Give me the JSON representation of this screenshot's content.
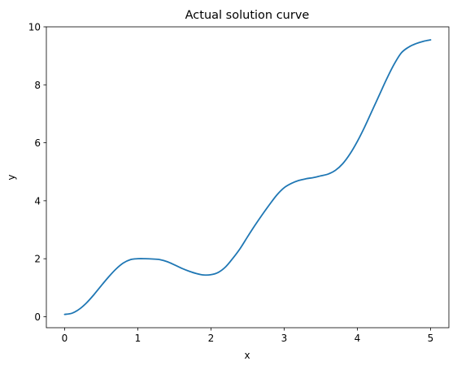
{
  "chart_data": {
    "type": "line",
    "title": "Actual solution curve",
    "xlabel": "x",
    "ylabel": "y",
    "xlim": [
      -0.25,
      5.25
    ],
    "ylim": [
      -0.38,
      10.0
    ],
    "xticks": [
      0,
      1,
      2,
      3,
      4,
      5
    ],
    "yticks": [
      0,
      2,
      4,
      6,
      8,
      10
    ],
    "grid": false,
    "series": [
      {
        "color": "#1f77b4",
        "x": [
          0,
          0.1,
          0.2,
          0.3,
          0.4,
          0.5,
          0.6,
          0.7,
          0.8,
          0.9,
          1.0,
          1.1,
          1.2,
          1.3,
          1.4,
          1.5,
          1.6,
          1.7,
          1.8,
          1.9,
          2.0,
          2.1,
          2.2,
          2.3,
          2.4,
          2.5,
          2.6,
          2.7,
          2.8,
          2.9,
          3.0,
          3.1,
          3.2,
          3.3,
          3.4,
          3.5,
          3.6,
          3.7,
          3.8,
          3.9,
          4.0,
          4.1,
          4.2,
          4.3,
          4.4,
          4.5,
          4.6,
          4.7,
          4.8,
          4.9,
          5.0
        ],
        "y": [
          0.08,
          0.12,
          0.26,
          0.48,
          0.76,
          1.07,
          1.37,
          1.64,
          1.85,
          1.97,
          2.0,
          2.0,
          1.99,
          1.97,
          1.9,
          1.79,
          1.67,
          1.57,
          1.49,
          1.44,
          1.45,
          1.53,
          1.72,
          2.02,
          2.36,
          2.76,
          3.15,
          3.52,
          3.87,
          4.2,
          4.45,
          4.6,
          4.7,
          4.76,
          4.8,
          4.86,
          4.92,
          5.05,
          5.28,
          5.62,
          6.05,
          6.55,
          7.1,
          7.65,
          8.2,
          8.7,
          9.1,
          9.3,
          9.42,
          9.5,
          9.55
        ]
      }
    ]
  }
}
